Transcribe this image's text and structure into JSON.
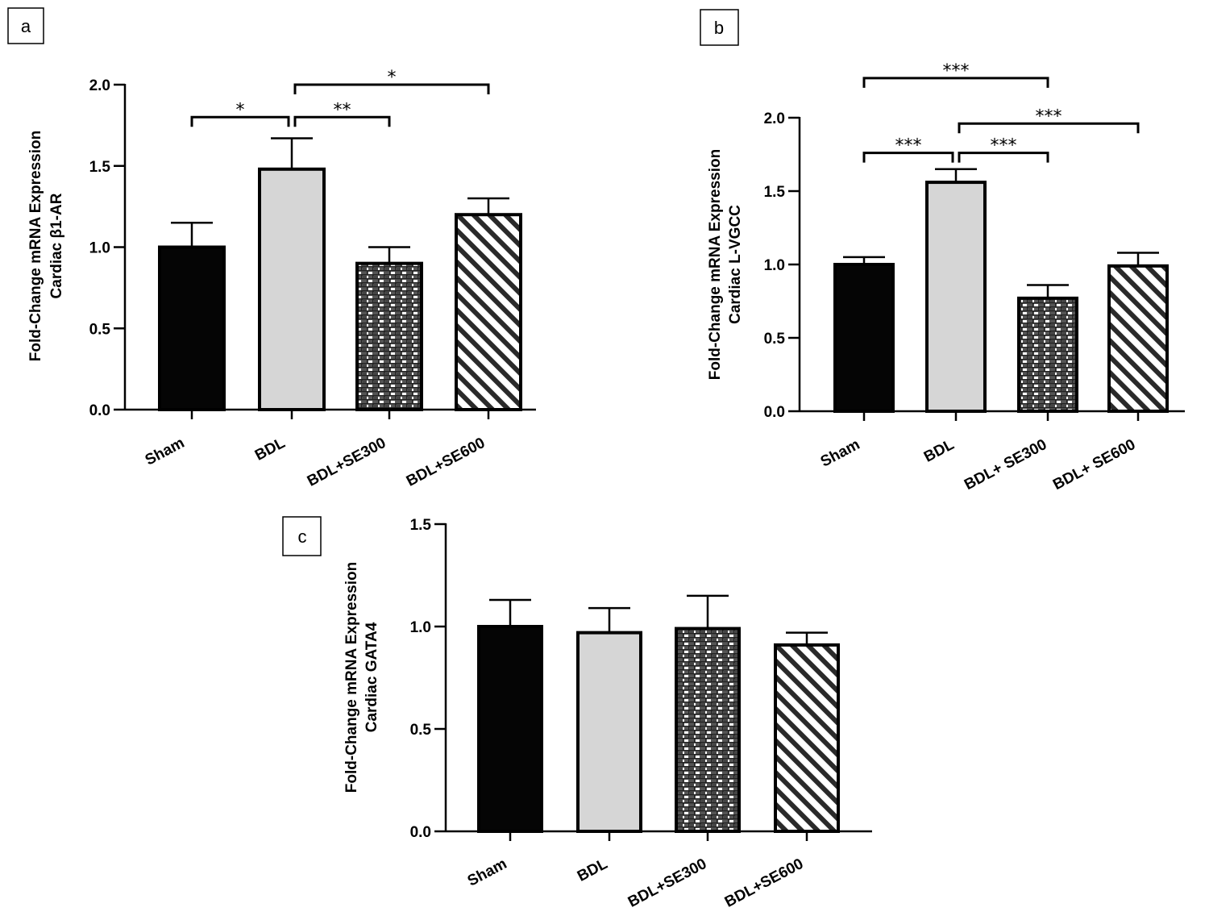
{
  "panels": [
    {
      "label": "a"
    },
    {
      "label": "b"
    },
    {
      "label": "c"
    }
  ],
  "chart_data": [
    {
      "type": "bar",
      "panel": "a",
      "categories": [
        "Sham",
        "BDL",
        "BDL+SE300",
        "BDL+SE600"
      ],
      "values": [
        1.0,
        1.48,
        0.9,
        1.2
      ],
      "errors": [
        0.15,
        0.19,
        0.1,
        0.1
      ],
      "fills": [
        "black",
        "lightgray",
        "brick",
        "hatch"
      ],
      "ylabel_lines": [
        "Fold-Change mRNA Expression",
        "Cardiac β1-AR"
      ],
      "ylim": [
        0,
        2.0
      ],
      "yticks": [
        "0.0",
        "0.5",
        "1.0",
        "1.5",
        "2.0"
      ],
      "ytick_values": [
        0,
        0.5,
        1.0,
        1.5,
        2.0
      ],
      "significance": [
        {
          "from": 0,
          "to": 1,
          "y": 1.8,
          "label": "*"
        },
        {
          "from": 1,
          "to": 2,
          "y": 1.8,
          "label": "**"
        },
        {
          "from": 1,
          "to": 3,
          "y": 2.0,
          "label": "*"
        }
      ]
    },
    {
      "type": "bar",
      "panel": "b",
      "categories": [
        "Sham",
        "BDL",
        "BDL+ SE300",
        "BDL+ SE600"
      ],
      "values": [
        1.0,
        1.56,
        0.77,
        0.99
      ],
      "errors": [
        0.05,
        0.09,
        0.09,
        0.09
      ],
      "fills": [
        "black",
        "lightgray",
        "brick",
        "hatch"
      ],
      "ylabel_lines": [
        "Fold-Change mRNA Expression",
        "Cardiac L-VGCC"
      ],
      "ylim": [
        0,
        2.0
      ],
      "yticks": [
        "0.0",
        "0.5",
        "1.0",
        "1.5",
        "2.0"
      ],
      "ytick_values": [
        0,
        0.5,
        1.0,
        1.5,
        2.0
      ],
      "significance": [
        {
          "from": 0,
          "to": 2,
          "y": 2.27,
          "label": "***"
        },
        {
          "from": 1,
          "to": 3,
          "y": 1.96,
          "label": "***"
        },
        {
          "from": 0,
          "to": 1,
          "y": 1.76,
          "label": "***"
        },
        {
          "from": 1,
          "to": 2,
          "y": 1.76,
          "label": "***"
        }
      ]
    },
    {
      "type": "bar",
      "panel": "c",
      "categories": [
        "Sham",
        "BDL",
        "BDL+SE300",
        "BDL+SE600"
      ],
      "values": [
        1.0,
        0.97,
        0.99,
        0.91
      ],
      "errors": [
        0.13,
        0.12,
        0.16,
        0.06
      ],
      "fills": [
        "black",
        "lightgray",
        "brick",
        "hatch"
      ],
      "ylabel_lines": [
        "Fold-Change mRNA Expression",
        "Cardiac GATA4"
      ],
      "ylim": [
        0,
        1.5
      ],
      "yticks": [
        "0.0",
        "0.5",
        "1.0",
        "1.5"
      ],
      "ytick_values": [
        0,
        0.5,
        1.0,
        1.5
      ],
      "significance": []
    }
  ]
}
